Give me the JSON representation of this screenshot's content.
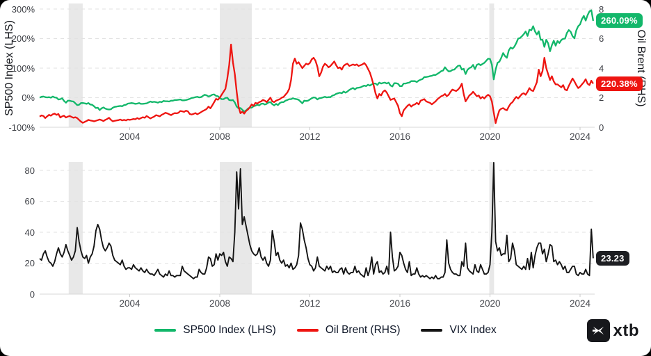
{
  "badges": {
    "sp500": "260.09%",
    "brent": "220.38%",
    "vix": "23.23"
  },
  "colors": {
    "sp500": "#12b76a",
    "brent": "#ee1511",
    "vix": "#141414",
    "grid": "#e2e2e2",
    "axis": "#d7d7d7",
    "band": "#e8e8e8",
    "badge_sp500_bg": "#12b76a",
    "badge_brent_bg": "#ee1511",
    "badge_vix_bg": "#1d1e22"
  },
  "legend": {
    "items": [
      {
        "label": "SP500 Index (LHS)",
        "color": "#12b76a"
      },
      {
        "label": "Oil Brent (RHS)",
        "color": "#ee1511"
      },
      {
        "label": "VIX Index",
        "color": "#141414"
      }
    ]
  },
  "logo": {
    "text": "xtb"
  },
  "chart_data": [
    {
      "type": "line",
      "panel": "top",
      "ylabel_left": "SP500 Index (LHS)",
      "ylabel_right": "Oil Brent (RHS)",
      "x_start_year": 2000.0,
      "x_step_years": 0.0833,
      "x_ticks": [
        {
          "label": "2004",
          "year": 2004
        },
        {
          "label": "2008",
          "year": 2008
        },
        {
          "label": "2012",
          "year": 2012
        },
        {
          "label": "2016",
          "year": 2016
        },
        {
          "label": "2020",
          "year": 2020
        },
        {
          "label": "2024",
          "year": 2024
        }
      ],
      "y_left": {
        "ticks": [
          {
            "label": "300%",
            "value": 300
          },
          {
            "label": "200%",
            "value": 200
          },
          {
            "label": "100%",
            "value": 100
          },
          {
            "label": "0%",
            "value": 0
          },
          {
            "label": "-100%",
            "value": -100
          }
        ],
        "range": [
          -100,
          300
        ]
      },
      "y_right": {
        "ticks": [
          {
            "label": "8",
            "value": 8
          },
          {
            "label": "6",
            "value": 6
          },
          {
            "label": "4",
            "value": 4
          },
          {
            "label": "2",
            "value": 2
          },
          {
            "label": "0",
            "value": 0
          }
        ],
        "range": [
          0,
          8
        ]
      },
      "recession_bands": [
        [
          2001.29,
          2001.91
        ],
        [
          2008.0,
          2009.42
        ],
        [
          2019.97,
          2020.18
        ]
      ],
      "grid": true,
      "legend_position": "bottom",
      "series": [
        {
          "name": "SP500 Index (LHS)",
          "axis": "left",
          "end_label": "260.09%",
          "values": [
            0,
            3,
            4,
            2,
            1,
            2,
            0,
            4,
            1,
            0,
            -6,
            -5,
            -2,
            -11,
            -17,
            -10,
            -10,
            -12,
            -13,
            -19,
            -25,
            -24,
            -18,
            -18,
            -19,
            -21,
            -18,
            -23,
            -24,
            -29,
            -35,
            -34,
            -42,
            -36,
            -33,
            -37,
            -39,
            -40,
            -39,
            -34,
            -31,
            -30,
            -29,
            -28,
            -29,
            -25,
            -24,
            -20,
            -19,
            -18,
            -19,
            -21,
            -20,
            -18,
            -21,
            -21,
            -20,
            -19,
            -16,
            -13,
            -15,
            -14,
            -15,
            -17,
            -14,
            -15,
            -11,
            -12,
            -12,
            -13,
            -10,
            -10,
            -8,
            -8,
            -7,
            -6,
            -9,
            -9,
            -8,
            -6,
            -4,
            -1,
            0,
            2,
            3,
            1,
            2,
            6,
            10,
            8,
            4,
            6,
            10,
            11,
            6,
            5,
            -1,
            -5,
            -5,
            -1,
            0,
            -8,
            -9,
            -8,
            -16,
            -30,
            -36,
            -35,
            -41,
            -47,
            -43,
            -37,
            -34,
            -34,
            -29,
            -27,
            -24,
            -26,
            -21,
            -20,
            -23,
            -21,
            -16,
            -15,
            -22,
            -26,
            -21,
            -25,
            -18,
            -15,
            -15,
            -10,
            -8,
            -5,
            -5,
            -2,
            -4,
            -5,
            -7,
            -13,
            -19,
            -10,
            -11,
            -10,
            -6,
            -2,
            1,
            0,
            -6,
            -2,
            -1,
            1,
            3,
            1,
            2,
            2,
            7,
            9,
            13,
            15,
            17,
            15,
            21,
            17,
            21,
            26,
            30,
            33,
            28,
            33,
            34,
            35,
            38,
            41,
            39,
            44,
            41,
            45,
            48,
            48,
            43,
            51,
            48,
            50,
            51,
            48,
            51,
            41,
            38,
            49,
            49,
            47,
            39,
            39,
            48,
            48,
            50,
            51,
            56,
            56,
            56,
            53,
            58,
            61,
            63,
            70,
            70,
            71,
            73,
            74,
            77,
            77,
            81,
            85,
            90,
            92,
            103,
            95,
            89,
            90,
            94,
            95,
            102,
            108,
            109,
            95,
            98,
            80,
            94,
            100,
            103,
            111,
            97,
            111,
            114,
            110,
            114,
            118,
            125,
            132,
            131,
            112,
            62,
            95,
            118,
            122,
            135,
            151,
            141,
            135,
            160,
            170,
            166,
            173,
            185,
            200,
            202,
            208,
            215,
            224,
            209,
            230,
            228,
            242,
            224,
            214,
            225,
            196,
            196,
            172,
            196,
            184,
            157,
            178,
            193,
            176,
            192,
            185,
            195,
            199,
            200,
            219,
            229,
            223,
            208,
            201,
            228,
            242,
            248,
            266,
            277,
            261,
            279,
            292,
            296,
            260.1
          ]
        },
        {
          "name": "Oil Brent (RHS)",
          "axis": "right",
          "end_label": "220.38%",
          "values": [
            0.72,
            0.8,
            0.76,
            0.62,
            0.74,
            0.84,
            0.78,
            0.88,
            0.92,
            0.84,
            0.9,
            0.66,
            0.74,
            0.78,
            0.66,
            0.72,
            0.76,
            0.7,
            0.64,
            0.68,
            0.62,
            0.5,
            0.38,
            0.3,
            0.36,
            0.42,
            0.5,
            0.46,
            0.44,
            0.4,
            0.44,
            0.48,
            0.52,
            0.48,
            0.42,
            0.5,
            0.56,
            0.64,
            0.5,
            0.4,
            0.44,
            0.46,
            0.48,
            0.52,
            0.46,
            0.5,
            0.46,
            0.52,
            0.5,
            0.52,
            0.56,
            0.54,
            0.62,
            0.56,
            0.62,
            0.68,
            0.64,
            0.76,
            0.68,
            0.6,
            0.66,
            0.72,
            0.82,
            0.78,
            0.74,
            0.84,
            0.9,
            0.98,
            0.94,
            0.88,
            0.82,
            0.9,
            0.96,
            0.94,
            0.98,
            1.1,
            1.08,
            1.04,
            1.12,
            1.08,
            0.9,
            0.86,
            0.9,
            0.96,
            0.88,
            0.94,
            1.02,
            1.1,
            1.16,
            1.24,
            1.4,
            1.28,
            1.48,
            1.7,
            1.92,
            1.86,
            2.0,
            2.2,
            2.4,
            2.6,
            3.3,
            4.2,
            5.6,
            4.4,
            3.6,
            2.4,
            1.4,
            0.95,
            1.05,
            0.92,
            1.1,
            1.2,
            1.35,
            1.55,
            1.45,
            1.65,
            1.6,
            1.7,
            1.75,
            1.85,
            1.8,
            1.7,
            1.85,
            2.0,
            1.75,
            1.7,
            1.8,
            1.85,
            1.9,
            2.0,
            2.05,
            2.2,
            2.35,
            2.6,
            3.2,
            4.3,
            4.65,
            4.3,
            4.4,
            4.2,
            4.0,
            4.15,
            4.3,
            4.25,
            4.35,
            4.6,
            4.7,
            4.5,
            4.1,
            3.45,
            3.7,
            4.1,
            4.3,
            4.2,
            4.05,
            4.15,
            4.3,
            4.45,
            4.2,
            4.0,
            4.05,
            3.9,
            4.15,
            4.25,
            4.3,
            4.15,
            4.2,
            4.25,
            4.2,
            4.25,
            4.15,
            4.2,
            4.25,
            4.35,
            4.2,
            3.95,
            3.7,
            3.3,
            2.85,
            2.3,
            1.95,
            2.25,
            2.15,
            2.4,
            2.5,
            2.35,
            2.1,
            1.85,
            1.9,
            1.95,
            1.7,
            1.45,
            0.95,
            0.75,
            1.15,
            1.3,
            1.45,
            1.55,
            1.4,
            1.5,
            1.55,
            1.65,
            1.55,
            1.8,
            1.85,
            1.9,
            1.75,
            1.7,
            1.65,
            1.55,
            1.65,
            1.75,
            1.9,
            2.0,
            2.1,
            2.15,
            2.25,
            2.1,
            2.2,
            2.4,
            2.55,
            2.5,
            2.45,
            2.55,
            2.7,
            2.95,
            2.25,
            1.75,
            1.95,
            2.15,
            2.25,
            2.4,
            2.25,
            2.1,
            2.15,
            1.95,
            2.05,
            1.95,
            2.1,
            2.2,
            2.1,
            1.75,
            1.0,
            0.28,
            0.75,
            1.15,
            1.25,
            1.3,
            1.2,
            1.15,
            1.4,
            1.6,
            1.7,
            1.9,
            2.05,
            1.95,
            2.1,
            2.25,
            2.3,
            2.2,
            2.4,
            2.65,
            2.5,
            2.45,
            2.75,
            3.05,
            3.9,
            3.45,
            3.8,
            4.7,
            4.0,
            3.6,
            3.2,
            3.45,
            3.1,
            2.9,
            2.9,
            2.8,
            2.7,
            2.85,
            2.55,
            2.5,
            2.8,
            3.05,
            3.3,
            3.1,
            2.85,
            2.65,
            2.75,
            2.9,
            3.05,
            3.25,
            2.95,
            2.85,
            3.15,
            2.95
          ]
        }
      ]
    },
    {
      "type": "line",
      "panel": "bottom",
      "x_start_year": 2000.0,
      "x_step_years": 0.0833,
      "x_ticks": [
        {
          "label": "2004",
          "year": 2004
        },
        {
          "label": "2008",
          "year": 2008
        },
        {
          "label": "2012",
          "year": 2012
        },
        {
          "label": "2016",
          "year": 2016
        },
        {
          "label": "2020",
          "year": 2020
        },
        {
          "label": "2024",
          "year": 2024
        }
      ],
      "y_left": {
        "ticks": [
          {
            "label": "80",
            "value": 80
          },
          {
            "label": "60",
            "value": 60
          },
          {
            "label": "40",
            "value": 40
          },
          {
            "label": "20",
            "value": 20
          },
          {
            "label": "0",
            "value": 0
          }
        ],
        "range": [
          0,
          85
        ]
      },
      "recession_bands": [
        [
          2001.29,
          2001.91
        ],
        [
          2008.0,
          2009.42
        ],
        [
          2019.97,
          2020.18
        ]
      ],
      "grid": true,
      "series": [
        {
          "name": "VIX Index",
          "axis": "left",
          "end_label": "23.23",
          "values": [
            23,
            22,
            26,
            28,
            24,
            21,
            20,
            18,
            21,
            26,
            30,
            26,
            24,
            27,
            32,
            28,
            25,
            22,
            24,
            28,
            43,
            34,
            28,
            24,
            23,
            25,
            20,
            24,
            26,
            31,
            41,
            45,
            42,
            35,
            30,
            28,
            30,
            33,
            31,
            25,
            22,
            21,
            20,
            19,
            22,
            18,
            16,
            17,
            17,
            16,
            19,
            17,
            16,
            15,
            17,
            15,
            14,
            16,
            14,
            13,
            13,
            12,
            14,
            16,
            13,
            12,
            11,
            13,
            12,
            15,
            12,
            12,
            11,
            12,
            12,
            12,
            18,
            15,
            14,
            13,
            12,
            11,
            10,
            11,
            11,
            16,
            14,
            13,
            13,
            17,
            24,
            23,
            18,
            19,
            26,
            22,
            26,
            25,
            27,
            21,
            18,
            24,
            23,
            21,
            40,
            79,
            55,
            81,
            45,
            50,
            44,
            38,
            32,
            28,
            26,
            25,
            26,
            30,
            24,
            22,
            24,
            20,
            18,
            22,
            41,
            34,
            25,
            27,
            22,
            20,
            22,
            18,
            19,
            17,
            20,
            16,
            17,
            19,
            25,
            46,
            42,
            35,
            30,
            23,
            19,
            18,
            15,
            17,
            24,
            18,
            17,
            16,
            15,
            18,
            16,
            18,
            14,
            15,
            14,
            14,
            16,
            17,
            13,
            17,
            14,
            13,
            14,
            14,
            18,
            14,
            15,
            13,
            12,
            11,
            17,
            12,
            16,
            24,
            13,
            19,
            21,
            14,
            15,
            13,
            14,
            18,
            13,
            40,
            24,
            15,
            16,
            18,
            27,
            25,
            20,
            16,
            14,
            21,
            12,
            13,
            13,
            17,
            13,
            11,
            12,
            11,
            12,
            11,
            10,
            11,
            10,
            12,
            10,
            10,
            11,
            11,
            14,
            35,
            20,
            16,
            14,
            13,
            13,
            12,
            12,
            21,
            18,
            33,
            17,
            15,
            14,
            13,
            19,
            15,
            14,
            19,
            16,
            13,
            13,
            14,
            19,
            40,
            85,
            34,
            28,
            30,
            25,
            26,
            26,
            38,
            21,
            23,
            33,
            28,
            19,
            18,
            17,
            16,
            18,
            16,
            23,
            16,
            27,
            17,
            25,
            30,
            33,
            33,
            26,
            29,
            21,
            26,
            32,
            31,
            21,
            22,
            19,
            21,
            19,
            16,
            18,
            14,
            14,
            16,
            18,
            18,
            13,
            12,
            14,
            13,
            13,
            16,
            13,
            12,
            42,
            23.2
          ]
        }
      ]
    }
  ]
}
